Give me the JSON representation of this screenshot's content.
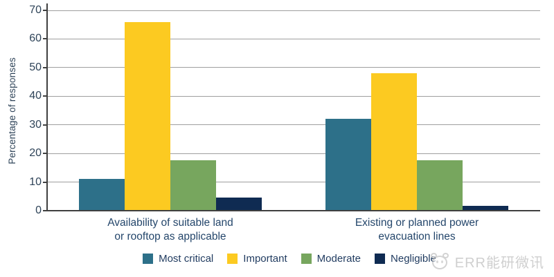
{
  "chart_data": {
    "type": "bar",
    "title": "",
    "xlabel": "",
    "ylabel": "Percentage of responses",
    "ylim": [
      0,
      70
    ],
    "yticks": [
      0,
      10,
      20,
      30,
      40,
      50,
      60,
      70
    ],
    "grid": true,
    "legend_position": "bottom",
    "categories": [
      "Availability of suitable land\nor rooftop as applicable",
      "Existing or planned power\nevacuation lines"
    ],
    "series": [
      {
        "name": "Most critical",
        "color": "#2d7089",
        "values": [
          11,
          32
        ]
      },
      {
        "name": "Important",
        "color": "#fcca21",
        "values": [
          66,
          48
        ]
      },
      {
        "name": "Moderate",
        "color": "#77a65e",
        "values": [
          17.7,
          17.7
        ]
      },
      {
        "name": "Negligible",
        "color": "#0f2b52",
        "values": [
          4.7,
          1.8
        ]
      }
    ]
  },
  "watermark": {
    "text": "ERR能研微讯",
    "icon": "panda-logo-icon"
  },
  "colors": {
    "background": "#ffffff",
    "grid": "#9e9e9e",
    "axis": "#3f3f3f",
    "tick_text": "#2e4358",
    "category_text": "#24466b",
    "legend_text": "#1f3a5f",
    "watermark_text": "#b3b3b3"
  }
}
